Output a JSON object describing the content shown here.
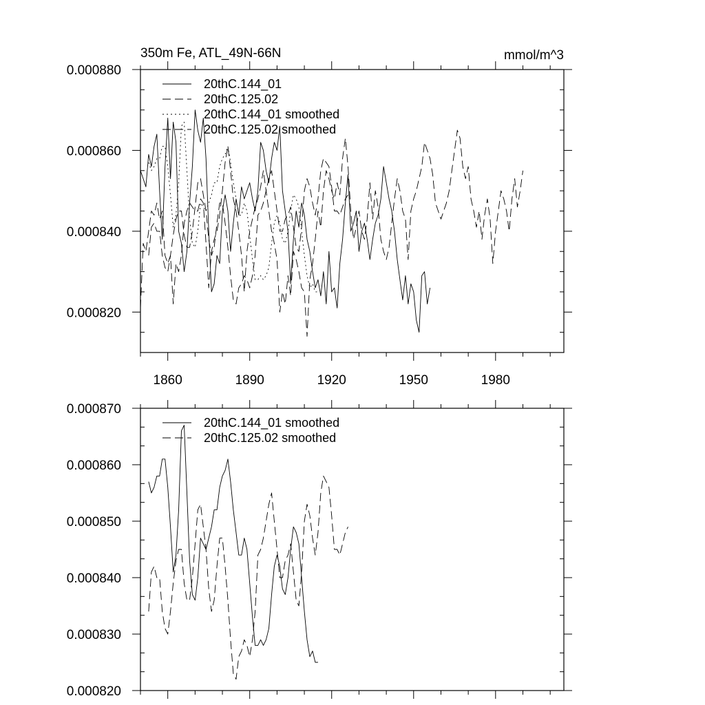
{
  "chart_data": [
    {
      "type": "line",
      "title_left": "350m Fe, ATL_49N-66N",
      "title_right": "mmol/m^3",
      "xlim": [
        1850,
        2005
      ],
      "ylim": [
        0.00081,
        0.00088
      ],
      "xticks": [
        1860,
        1890,
        1920,
        1950,
        1980
      ],
      "xtick_labels": [
        "1860",
        "1890",
        "1920",
        "1950",
        "1980"
      ],
      "yticks": [
        0.00082,
        0.00084,
        0.00086,
        0.00088
      ],
      "ytick_labels": [
        "0.000820",
        "0.000840",
        "0.000860",
        "0.000880"
      ],
      "legend": [
        "20thC.144_01",
        "20thC.125.02",
        "20thC.144_01 smoothed",
        "20thC.125.02 smoothed"
      ],
      "series": [
        {
          "name": "20thC.144_01",
          "style": "solid",
          "start": 1850,
          "values": [
            0.000855,
            0.000853,
            0.000851,
            0.000859,
            0.000856,
            0.000861,
            0.000864,
            0.00085,
            0.000838,
            0.000856,
            0.000868,
            0.000853,
            0.000867,
            0.000862,
            0.00084,
            0.000837,
            0.00083,
            0.000835,
            0.000847,
            0.000856,
            0.00087,
            0.000865,
            0.000862,
            0.000868,
            0.000858,
            0.00084,
            0.000825,
            0.000827,
            0.000834,
            0.000832,
            0.000845,
            0.000849,
            0.000845,
            0.000835,
            0.000842,
            0.000848,
            0.000844,
            0.000851,
            0.000848,
            0.00085,
            0.000852,
            0.000848,
            0.000845,
            0.00085,
            0.000862,
            0.00086,
            0.000855,
            0.000852,
            0.000858,
            0.000862,
            0.00086,
            0.000866,
            0.00085,
            0.000845,
            0.00084,
            0.000827,
            0.000838,
            0.000845,
            0.000841,
            0.000847,
            0.000844,
            0.000838,
            0.000835,
            0.00083,
            0.000826,
            0.000828,
            0.000824,
            0.00083,
            0.000822,
            0.000835,
            0.000825,
            0.000826,
            0.000821,
            0.000832,
            0.000838,
            0.000847,
            0.000854,
            0.00084,
            0.000842,
            0.000845,
            0.000835,
            0.00084,
            0.000842,
            0.000838,
            0.000833,
            0.000838,
            0.000842,
            0.000844,
            0.000848,
            0.000856,
            0.000852,
            0.000848,
            0.000845,
            0.00084,
            0.000833,
            0.000828,
            0.000823,
            0.000829,
            0.000822,
            0.000827,
            0.000825,
            0.000818,
            0.000815,
            0.000829,
            0.00083,
            0.000822,
            0.000826
          ]
        },
        {
          "name": "20thC.125.02",
          "style": "dashed",
          "start": 1850,
          "values": [
            0.000821,
            0.000837,
            0.000835,
            0.00084,
            0.000845,
            0.000844,
            0.000847,
            0.000843,
            0.000845,
            0.000834,
            0.000832,
            0.000834,
            0.000822,
            0.000832,
            0.00083,
            0.000834,
            0.000842,
            0.000845,
            0.000847,
            0.000846,
            0.000845,
            0.000845,
            0.000848,
            0.000847,
            0.000837,
            0.000826,
            0.000835,
            0.000838,
            0.00084,
            0.000844,
            0.00085,
            0.000857,
            0.000861,
            0.000855,
            0.000848,
            0.000845,
            0.00084,
            0.000834,
            0.000825,
            0.000835,
            0.00084,
            0.000843,
            0.000846,
            0.000848,
            0.000851,
            0.000855,
            0.00085,
            0.000845,
            0.00084,
            0.000837,
            0.000833,
            0.00082,
            0.000825,
            0.000822,
            0.000829,
            0.000824,
            0.000835,
            0.000833,
            0.00083,
            0.000826,
            0.000825,
            0.000814,
            0.000828,
            0.000832,
            0.000838,
            0.000845,
            0.000841,
            0.00085,
            0.000855,
            0.000853,
            0.00085,
            0.000848,
            0.000852,
            0.000849,
            0.000858,
            0.000863,
            0.000856,
            0.000845,
            0.000838,
            0.000841,
            0.000845,
            0.00084,
            0.000838,
            0.000843,
            0.000852,
            0.000843,
            0.00085,
            0.000846,
            0.000838,
            0.000835,
            0.000833,
            0.000836,
            0.000842,
            0.000848,
            0.000853,
            0.00085,
            0.000845,
            0.000843,
            0.000833,
            0.000845,
            0.000848,
            0.00085,
            0.000853,
            0.000856,
            0.000862,
            0.00086,
            0.000858,
            0.000854,
            0.000847,
            0.000845,
            0.000843,
            0.000845,
            0.000847,
            0.00085,
            0.000855,
            0.00086,
            0.000865,
            0.000863,
            0.000856,
            0.000853,
            0.000856,
            0.000848,
            0.000845,
            0.000841,
            0.000845,
            0.000838,
            0.000844,
            0.000848,
            0.000843,
            0.000832,
            0.00084,
            0.000845,
            0.00085,
            0.000848,
            0.000845,
            0.00084,
            0.000848,
            0.000853,
            0.000846,
            0.00085,
            0.000855
          ]
        },
        {
          "name": "20thC.144_01 smoothed",
          "style": "dotted",
          "start": 1853,
          "values": [
            0.000857,
            0.000855,
            0.000856,
            0.000858,
            0.000858,
            0.000861,
            0.000861,
            0.000856,
            0.000849,
            0.000841,
            0.000844,
            0.000852,
            0.000866,
            0.000867,
            0.000855,
            0.000843,
            0.000837,
            0.000836,
            0.00084,
            0.000847,
            0.000846,
            0.000845,
            0.000847,
            0.000849,
            0.000852,
            0.000852,
            0.000856,
            0.000858,
            0.000859,
            0.000861,
            0.000857,
            0.000852,
            0.000848,
            0.000844,
            0.000844,
            0.000847,
            0.000845,
            0.000839,
            0.000833,
            0.000828,
            0.000828,
            0.000829,
            0.000828,
            0.000829,
            0.000831,
            0.000837,
            0.000842,
            0.000844,
            0.000842,
            0.000838,
            0.000837,
            0.00084,
            0.000845,
            0.000849,
            0.000848,
            0.000846,
            0.00084,
            0.000834,
            0.000829,
            0.000826,
            0.000827,
            0.000825,
            0.000825
          ]
        },
        {
          "name": "20thC.125.02 smoothed",
          "style": "dashed",
          "start": 1853,
          "values": [
            0.000834,
            0.000841,
            0.000842,
            0.00084,
            0.00084,
            0.000834,
            0.000831,
            0.00083,
            0.000834,
            0.000839,
            0.000843,
            0.000845,
            0.000845,
            0.000839,
            0.000836,
            0.000836,
            0.00084,
            0.000846,
            0.000852,
            0.000853,
            0.000849,
            0.000845,
            0.000838,
            0.000834,
            0.000836,
            0.000842,
            0.000847,
            0.000847,
            0.000842,
            0.000836,
            0.000829,
            0.000823,
            0.000822,
            0.000826,
            0.000827,
            0.000829,
            0.000828,
            0.000826,
            0.000829,
            0.000834,
            0.000844,
            0.000845,
            0.000847,
            0.00085,
            0.000853,
            0.000855,
            0.00085,
            0.000845,
            0.00084,
            0.00084,
            0.000843,
            0.000844,
            0.000846,
            0.000841,
            0.000836,
            0.000835,
            0.000841,
            0.00085,
            0.000853,
            0.000851,
            0.000847,
            0.000844,
            0.000848,
            0.000855,
            0.000858,
            0.000857,
            0.000856,
            0.000851,
            0.000845,
            0.000845,
            0.000844,
            0.000846,
            0.000848,
            0.000849
          ]
        }
      ]
    },
    {
      "type": "line",
      "xlim": [
        1850,
        2005
      ],
      "ylim": [
        0.00082,
        0.00087
      ],
      "xticks": [
        1860,
        1890,
        1920,
        1950,
        1980
      ],
      "yticks": [
        0.00082,
        0.00083,
        0.00084,
        0.00085,
        0.00086,
        0.00087
      ],
      "ytick_labels": [
        "0.000820",
        "0.000830",
        "0.000840",
        "0.000850",
        "0.000860",
        "0.000870"
      ],
      "legend": [
        "20thC.144_01 smoothed",
        "20thC.125.02 smoothed"
      ],
      "series": [
        {
          "name": "20thC.144_01 smoothed",
          "style": "solid",
          "start": 1853,
          "values": [
            0.000857,
            0.000855,
            0.000856,
            0.000858,
            0.000858,
            0.000861,
            0.000861,
            0.000856,
            0.000849,
            0.000841,
            0.000844,
            0.000852,
            0.000866,
            0.000867,
            0.000855,
            0.000843,
            0.000837,
            0.000836,
            0.00084,
            0.000847,
            0.000846,
            0.000845,
            0.000847,
            0.000849,
            0.000852,
            0.000852,
            0.000856,
            0.000858,
            0.000859,
            0.000861,
            0.000857,
            0.000852,
            0.000848,
            0.000844,
            0.000844,
            0.000847,
            0.000845,
            0.000839,
            0.000833,
            0.000828,
            0.000828,
            0.000829,
            0.000828,
            0.000829,
            0.000831,
            0.000837,
            0.000842,
            0.000844,
            0.000842,
            0.000838,
            0.000837,
            0.00084,
            0.000845,
            0.000849,
            0.000848,
            0.000846,
            0.00084,
            0.000834,
            0.000829,
            0.000826,
            0.000827,
            0.000825,
            0.000825
          ]
        },
        {
          "name": "20thC.125.02 smoothed",
          "style": "dashed",
          "start": 1853,
          "values": [
            0.000834,
            0.000841,
            0.000842,
            0.00084,
            0.00084,
            0.000834,
            0.000831,
            0.00083,
            0.000834,
            0.000839,
            0.000843,
            0.000845,
            0.000845,
            0.000839,
            0.000836,
            0.000836,
            0.00084,
            0.000846,
            0.000852,
            0.000853,
            0.000849,
            0.000845,
            0.000838,
            0.000834,
            0.000836,
            0.000842,
            0.000847,
            0.000847,
            0.000842,
            0.000836,
            0.000829,
            0.000823,
            0.000822,
            0.000826,
            0.000827,
            0.000829,
            0.000828,
            0.000826,
            0.000829,
            0.000834,
            0.000844,
            0.000845,
            0.000847,
            0.00085,
            0.000853,
            0.000855,
            0.00085,
            0.000845,
            0.00084,
            0.00084,
            0.000843,
            0.000844,
            0.000846,
            0.000841,
            0.000836,
            0.000835,
            0.000841,
            0.00085,
            0.000853,
            0.000851,
            0.000847,
            0.000844,
            0.000848,
            0.000855,
            0.000858,
            0.000857,
            0.000856,
            0.000851,
            0.000845,
            0.000845,
            0.000844,
            0.000846,
            0.000848,
            0.000849
          ]
        }
      ]
    }
  ]
}
